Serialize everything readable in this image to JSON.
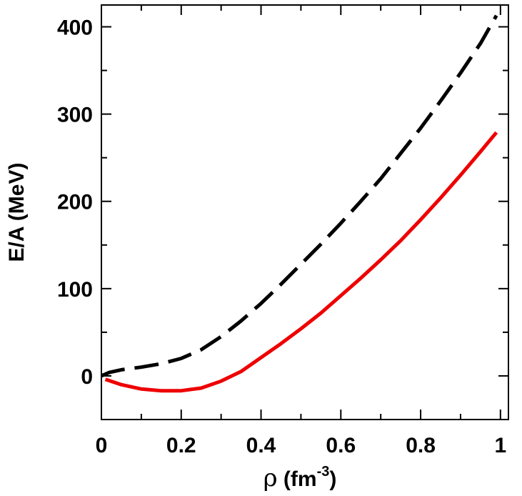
{
  "chart_data": {
    "type": "line",
    "title": "",
    "xlabel": "ρ (fm-3)",
    "xlabel_parts": {
      "symbol": "ρ",
      "open": " (fm",
      "sup": "-3",
      "close": ")"
    },
    "ylabel": "E/A (MeV)",
    "xlim": [
      0,
      1.02
    ],
    "ylim": [
      -50,
      425
    ],
    "xticks": [
      0,
      0.2,
      0.4,
      0.6,
      0.8,
      1
    ],
    "xtick_labels": [
      "0",
      "0.2",
      "0.4",
      "0.6",
      "0.8",
      "1"
    ],
    "yticks": [
      0,
      100,
      200,
      300,
      400
    ],
    "ytick_labels": [
      "0",
      "100",
      "200",
      "300",
      "400"
    ],
    "grid": false,
    "legend": "none",
    "series": [
      {
        "color": "#000000",
        "dash": "dashed",
        "x": [
          0.0,
          0.02,
          0.05,
          0.1,
          0.15,
          0.2,
          0.25,
          0.3,
          0.35,
          0.4,
          0.45,
          0.5,
          0.55,
          0.6,
          0.65,
          0.7,
          0.75,
          0.8,
          0.85,
          0.9,
          0.95,
          0.99
        ],
        "y": [
          0,
          4,
          7,
          10,
          14,
          20,
          30,
          45,
          63,
          83,
          105,
          128,
          151,
          175,
          200,
          226,
          255,
          284,
          315,
          347,
          381,
          413
        ]
      },
      {
        "color": "#ee0000",
        "dash": "solid",
        "x": [
          0.01,
          0.05,
          0.1,
          0.15,
          0.2,
          0.25,
          0.3,
          0.35,
          0.4,
          0.45,
          0.5,
          0.55,
          0.6,
          0.65,
          0.7,
          0.75,
          0.8,
          0.85,
          0.9,
          0.95,
          0.99
        ],
        "y": [
          -4,
          -10,
          -15,
          -17,
          -17,
          -14,
          -6,
          5,
          21,
          37,
          54,
          72,
          92,
          112,
          133,
          155,
          179,
          204,
          230,
          257,
          279
        ]
      }
    ]
  }
}
